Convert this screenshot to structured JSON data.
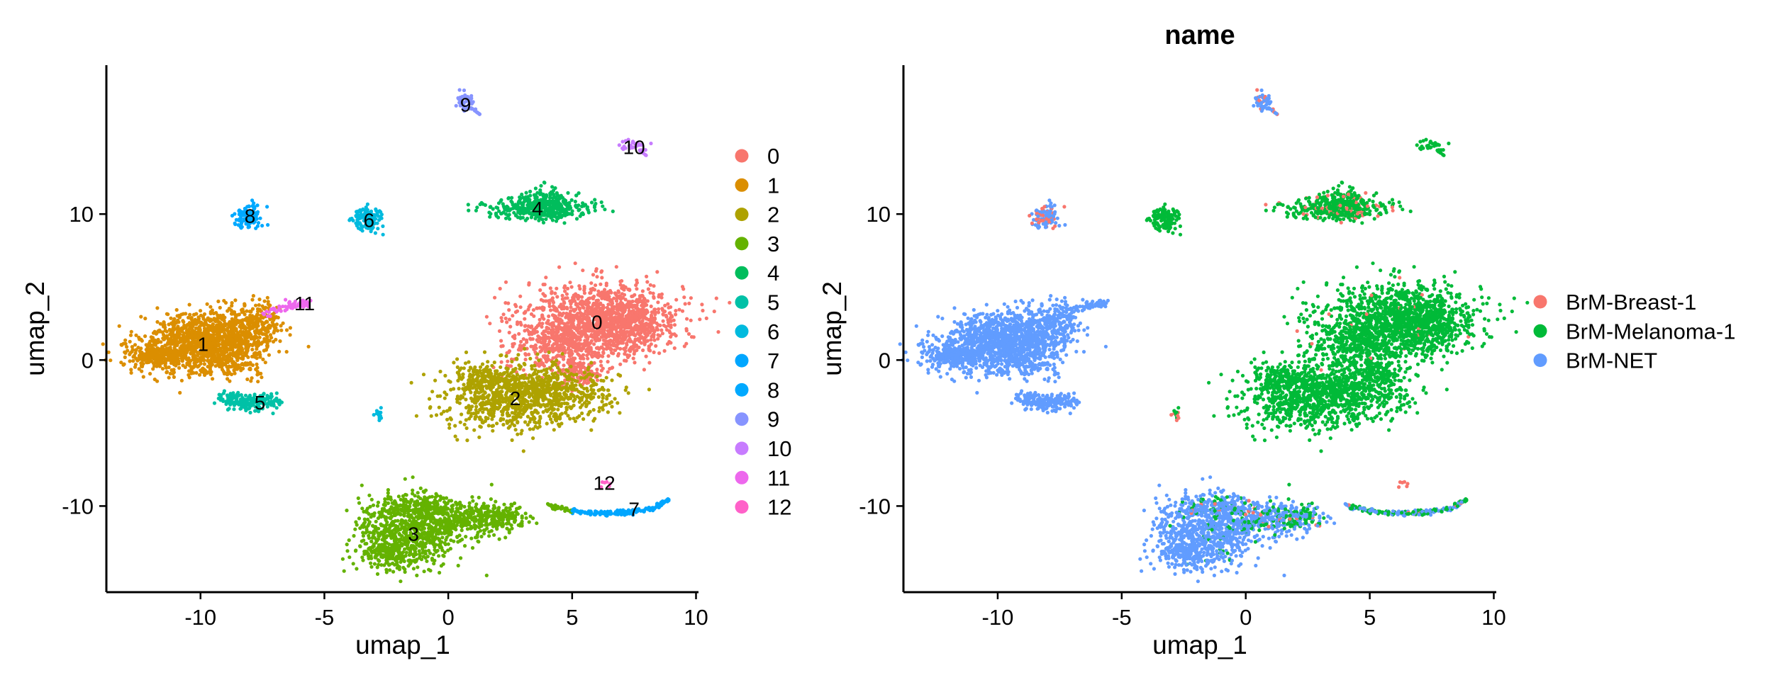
{
  "chart_data": [
    {
      "type": "scatter",
      "title": "",
      "xlabel": "umap_1",
      "ylabel": "umap_2",
      "xlim": [
        -13.8,
        10.1
      ],
      "ylim": [
        -15.9,
        20.2
      ],
      "xticks": [
        -10,
        -5,
        0,
        5,
        10
      ],
      "yticks": [
        -10,
        0,
        10
      ],
      "grid": false,
      "legend_position": "right",
      "series": [
        {
          "name": "0",
          "color": "#F8766D",
          "centroid": [
            6.0,
            2.6
          ]
        },
        {
          "name": "1",
          "color": "#DB8E00",
          "centroid": [
            -9.9,
            1.1
          ]
        },
        {
          "name": "2",
          "color": "#AEA200",
          "centroid": [
            2.7,
            -2.6
          ]
        },
        {
          "name": "3",
          "color": "#64B200",
          "centroid": [
            -1.4,
            -11.9
          ]
        },
        {
          "name": "4",
          "color": "#00BD5C",
          "centroid": [
            3.6,
            10.4
          ]
        },
        {
          "name": "5",
          "color": "#00C1A7",
          "centroid": [
            -7.6,
            -2.9
          ]
        },
        {
          "name": "6",
          "color": "#00BADE",
          "centroid": [
            -3.2,
            9.6
          ]
        },
        {
          "name": "7",
          "color": "#00A6FF",
          "centroid": [
            7.5,
            -10.2
          ]
        },
        {
          "name": "8",
          "color": "#00A9FF",
          "centroid": [
            -8.0,
            9.9
          ]
        },
        {
          "name": "9",
          "color": "#8794FF",
          "centroid": [
            0.7,
            17.5
          ]
        },
        {
          "name": "10",
          "color": "#C77CFF",
          "centroid": [
            7.5,
            14.6
          ]
        },
        {
          "name": "11",
          "color": "#ED68ED",
          "centroid": [
            -5.8,
            3.9
          ]
        },
        {
          "name": "12",
          "color": "#FF61C9",
          "centroid": [
            6.3,
            -8.4
          ]
        }
      ],
      "annotations": [
        "0",
        "1",
        "2",
        "3",
        "4",
        "5",
        "6",
        "7",
        "8",
        "9",
        "10",
        "11",
        "12"
      ]
    },
    {
      "type": "scatter",
      "title": "name",
      "xlabel": "umap_1",
      "ylabel": "umap_2",
      "xlim": [
        -13.8,
        10.1
      ],
      "ylim": [
        -15.9,
        20.2
      ],
      "xticks": [
        -10,
        -5,
        0,
        5,
        10
      ],
      "yticks": [
        -10,
        0,
        10
      ],
      "grid": false,
      "legend_position": "right",
      "series": [
        {
          "name": "BrM-Breast-1",
          "color": "#F8766D"
        },
        {
          "name": "BrM-Melanoma-1",
          "color": "#00BA38"
        },
        {
          "name": "BrM-NET",
          "color": "#619CFF"
        }
      ]
    }
  ]
}
